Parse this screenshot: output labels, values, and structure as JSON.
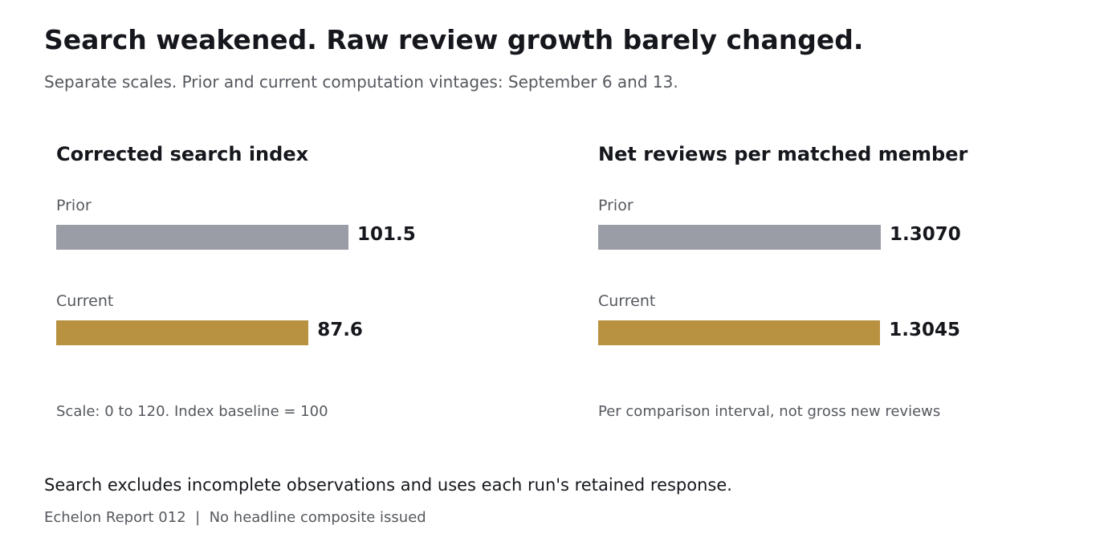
{
  "title": "Search weakened. Raw review growth barely changed.",
  "subtitle": "Separate scales. Prior and current computation vintages: September 6 and 13.",
  "chart_data": [
    {
      "type": "bar",
      "orientation": "horizontal",
      "title": "Corrected search index",
      "categories": [
        "Prior",
        "Current"
      ],
      "values": [
        101.5,
        87.6
      ],
      "value_labels": [
        "101.5",
        "87.6"
      ],
      "xlim": [
        0,
        120
      ],
      "note": "Scale: 0 to 120. Index baseline = 100",
      "colors": [
        "#9a9da6",
        "#b89240"
      ]
    },
    {
      "type": "bar",
      "orientation": "horizontal",
      "title": "Net reviews per matched member",
      "categories": [
        "Prior",
        "Current"
      ],
      "values": [
        1.307,
        1.3045
      ],
      "value_labels": [
        "1.3070",
        "1.3045"
      ],
      "note": "Per comparison interval, not gross new reviews",
      "colors": [
        "#9a9da6",
        "#b89240"
      ]
    }
  ],
  "footnote": "Search excludes incomplete observations and uses each run's retained response.",
  "source": "Echelon Report 012  |  No headline composite issued"
}
